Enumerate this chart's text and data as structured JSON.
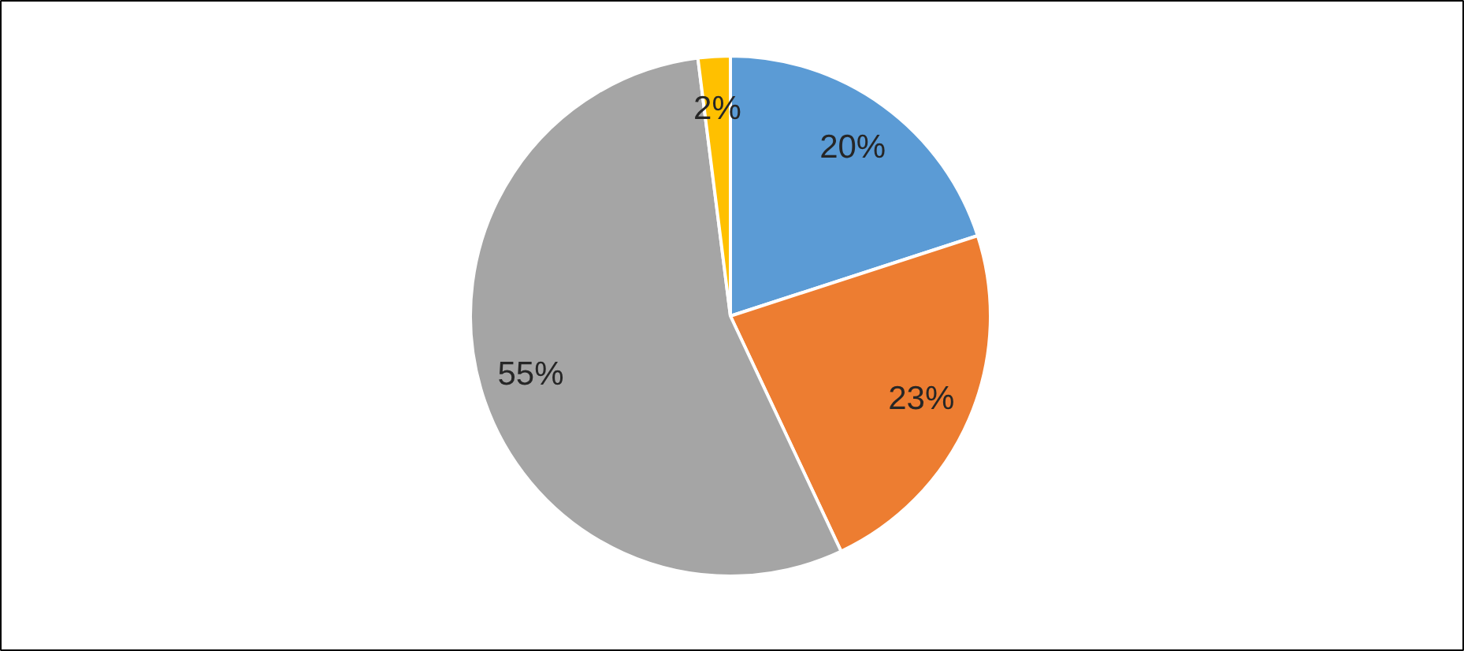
{
  "chart_data": {
    "type": "pie",
    "categories": [
      null,
      null,
      null,
      null
    ],
    "values": [
      20,
      23,
      55,
      2
    ],
    "colors": [
      "#5b9bd5",
      "#ed7d31",
      "#a5a5a5",
      "#ffc000"
    ],
    "value_labels": [
      "20%",
      "23%",
      "55%",
      "2%"
    ]
  }
}
